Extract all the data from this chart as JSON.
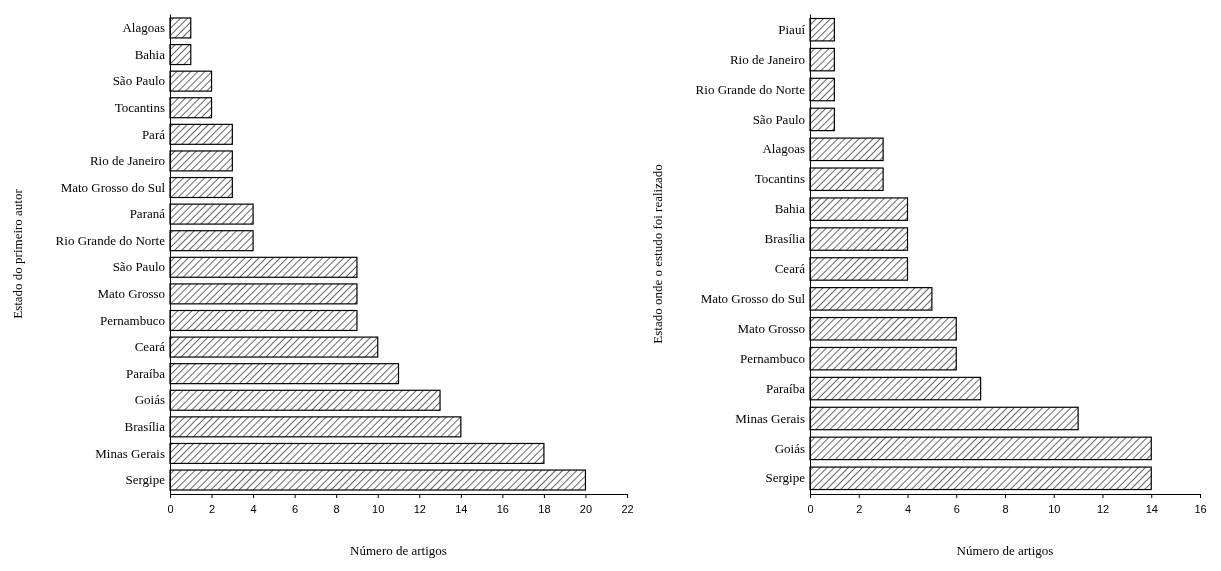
{
  "chart_data": [
    {
      "type": "bar",
      "orientation": "horizontal",
      "xlabel": "Número de artigos",
      "ylabel": "Estado do primeiro autor",
      "categories": [
        "Alagoas",
        "Bahia",
        "São Paulo",
        "Tocantins",
        "Pará",
        "Rio de Janeiro",
        "Mato Grosso do Sul",
        "Paraná",
        "Rio Grande do Norte",
        "São Paulo",
        "Mato Grosso",
        "Pernambuco",
        "Ceará",
        "Paraíba",
        "Goiás",
        "Brasília",
        "Minas Gerais",
        "Sergipe"
      ],
      "values": [
        1,
        1,
        2,
        2,
        3,
        3,
        3,
        4,
        4,
        9,
        9,
        9,
        10,
        11,
        13,
        14,
        18,
        20
      ],
      "color": "#000000",
      "xlim": [
        0,
        22
      ],
      "xticks": [
        0,
        2,
        4,
        6,
        8,
        10,
        12,
        14,
        16,
        18,
        20,
        22
      ]
    },
    {
      "type": "bar",
      "orientation": "horizontal",
      "xlabel": "Número de artigos",
      "ylabel": "Estado onde o estudo foi realizado",
      "categories": [
        "Piauí",
        "Rio de Janeiro",
        "Rio Grande do Norte",
        "São Paulo",
        "Alagoas",
        "Tocantins",
        "Bahia",
        "Brasília",
        "Ceará",
        "Mato Grosso do Sul",
        "Mato Grosso",
        "Pernambuco",
        "Paraíba",
        "Minas Gerais",
        "Goiás",
        "Sergipe"
      ],
      "values": [
        1,
        1,
        1,
        1,
        3,
        3,
        4,
        4,
        4,
        5,
        6,
        6,
        7,
        11,
        14,
        14
      ],
      "color": "#000000",
      "xlim": [
        0,
        16
      ],
      "xticks": [
        0,
        2,
        4,
        6,
        8,
        10,
        12,
        14,
        16
      ]
    }
  ]
}
